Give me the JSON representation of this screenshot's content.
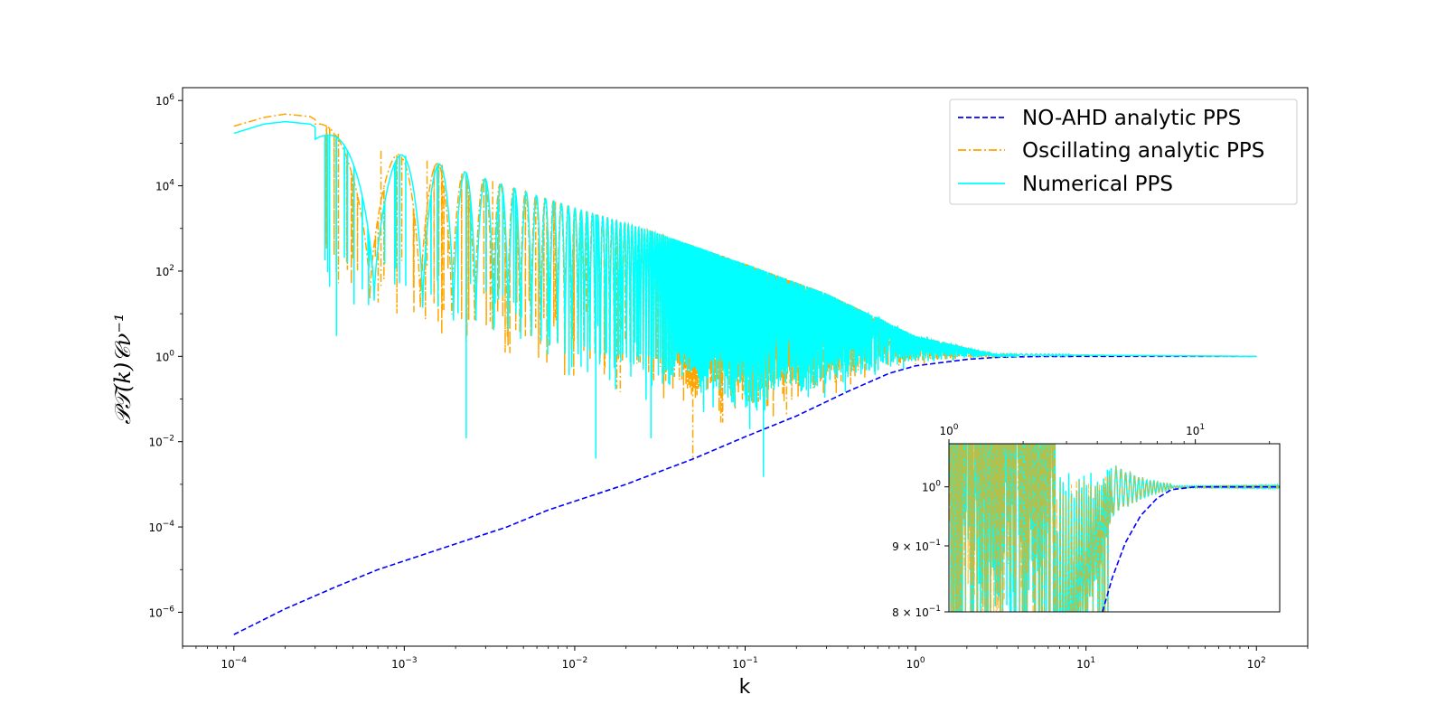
{
  "chart_data": [
    {
      "type": "line",
      "name": "main-plot",
      "xscale": "log",
      "yscale": "log",
      "xlabel": "k",
      "ylabel": "𝒫𝒯(k)𝒞ν⁻¹",
      "xlim": [
        5e-05,
        200
      ],
      "ylim": [
        1.6e-07,
        2000000.0
      ],
      "xticks": [
        {
          "value": 0.0001,
          "base": "10",
          "exp": "−4"
        },
        {
          "value": 0.001,
          "base": "10",
          "exp": "−3"
        },
        {
          "value": 0.01,
          "base": "10",
          "exp": "−2"
        },
        {
          "value": 0.1,
          "base": "10",
          "exp": "−1"
        },
        {
          "value": 1,
          "base": "10",
          "exp": "0"
        },
        {
          "value": 10,
          "base": "10",
          "exp": "1"
        },
        {
          "value": 100,
          "base": "10",
          "exp": "2"
        }
      ],
      "yticks": [
        {
          "value": 1e-06,
          "base": "10",
          "exp": "−6"
        },
        {
          "value": 0.0001,
          "base": "10",
          "exp": "−4"
        },
        {
          "value": 0.01,
          "base": "10",
          "exp": "−2"
        },
        {
          "value": 1,
          "base": "10",
          "exp": "0"
        },
        {
          "value": 100.0,
          "base": "10",
          "exp": "2"
        },
        {
          "value": 10000.0,
          "base": "10",
          "exp": "4"
        },
        {
          "value": 1000000.0,
          "base": "10",
          "exp": "6"
        }
      ],
      "legend": {
        "position": "top-right",
        "entries": [
          {
            "label": "NO-AHD analytic PPS",
            "color": "#0000ff",
            "style": "dashed"
          },
          {
            "label": "Oscillating analytic PPS",
            "color": "#ffa500",
            "style": "dashdot"
          },
          {
            "label": "Numerical PPS",
            "color": "#00ffff",
            "style": "solid"
          }
        ]
      },
      "series": [
        {
          "name": "NO-AHD analytic PPS",
          "color": "#0000ff",
          "style": "dashed",
          "x": [
            0.0001,
            0.0002,
            0.0004,
            0.0007,
            0.001,
            0.002,
            0.004,
            0.007,
            0.01,
            0.02,
            0.05,
            0.1,
            0.2,
            0.4,
            0.7,
            1,
            2,
            3,
            5,
            10,
            100
          ],
          "y": [
            3e-07,
            1.2e-06,
            4e-06,
            1e-05,
            1.6e-05,
            4e-05,
            0.0001,
            0.00025,
            0.0004,
            0.001,
            0.004,
            0.013,
            0.04,
            0.15,
            0.4,
            0.6,
            0.85,
            0.95,
            0.99,
            1.0,
            1.0
          ]
        },
        {
          "name": "Oscillating analytic PPS",
          "color": "#ffa500",
          "style": "dashdot",
          "envelope_x": [
            0.0001,
            0.00015,
            0.0002,
            0.00028,
            0.00035,
            0.0005,
            0.0008,
            0.0012,
            0.002,
            0.004,
            0.01,
            0.03,
            0.1,
            0.3,
            1,
            3,
            100
          ],
          "envelope_y": [
            250000.0,
            400000.0,
            480000.0,
            420000.0,
            250000.0,
            100000.0,
            60000.0,
            45000.0,
            25000.0,
            10000.0,
            3000.0,
            800,
            150,
            30,
            3,
            1.1,
            1.0
          ],
          "dips": [
            {
              "k": 0.00041,
              "depth": 100
            },
            {
              "k": 0.00073,
              "depth": 45
            },
            {
              "k": 0.00136,
              "depth": 120
            },
            {
              "k": 0.00167,
              "depth": 12
            },
            {
              "k": 0.0033,
              "depth": 6
            },
            {
              "k": 0.0077,
              "depth": 8
            },
            {
              "k": 0.0117,
              "depth": 10
            },
            {
              "k": 0.0198,
              "depth": 2.5
            },
            {
              "k": 0.0493,
              "depth": 0.0035
            },
            {
              "k": 0.175,
              "depth": 0.04
            }
          ]
        },
        {
          "name": "Numerical PPS",
          "color": "#00ffff",
          "style": "solid",
          "envelope_x": [
            0.0001,
            0.00015,
            0.0002,
            0.00028,
            0.00035,
            0.0005,
            0.0008,
            0.0012,
            0.002,
            0.004,
            0.01,
            0.03,
            0.1,
            0.3,
            1,
            3,
            100
          ],
          "envelope_y": [
            170000.0,
            280000.0,
            320000.0,
            280000.0,
            170000.0,
            100000.0,
            60000.0,
            45000.0,
            25000.0,
            10000.0,
            3000.0,
            800,
            150,
            30,
            3,
            1.1,
            1.0
          ],
          "dips": [
            {
              "k": 0.0004,
              "depth": 3
            },
            {
              "k": 0.00102,
              "depth": 45
            },
            {
              "k": 0.00231,
              "depth": 0.012
            },
            {
              "k": 0.0133,
              "depth": 0.004
            },
            {
              "k": 0.028,
              "depth": 0.012
            },
            {
              "k": 0.128,
              "depth": 0.0015
            }
          ]
        }
      ]
    },
    {
      "type": "line",
      "name": "inset-plot",
      "xscale": "log",
      "yscale": "log",
      "xlim": [
        1,
        22
      ],
      "ylim": [
        0.8,
        1.08
      ],
      "xticks": [
        {
          "value": 1,
          "base": "10",
          "exp": "0"
        },
        {
          "value": 10,
          "base": "10",
          "exp": "1"
        }
      ],
      "yticks": [
        {
          "value": 0.8,
          "label": "8 × 10",
          "exp": "−1"
        },
        {
          "value": 0.9,
          "label": "9 × 10",
          "exp": "−1"
        },
        {
          "value": 1.0,
          "label": "10",
          "exp": "0"
        }
      ],
      "series": [
        {
          "name": "NO-AHD analytic PPS",
          "color": "#0000ff",
          "style": "dashed",
          "x": [
            4.2,
            4.6,
            5.2,
            6,
            7,
            8,
            10,
            13,
            22
          ],
          "y": [
            0.8,
            0.85,
            0.905,
            0.95,
            0.98,
            0.995,
            1.0,
            1.0,
            1.0
          ]
        },
        {
          "name": "Numerical PPS",
          "color": "#00ffff",
          "style": "solid",
          "description": "dense oscillations decaying to 1.0 by k≈8"
        }
      ]
    }
  ]
}
